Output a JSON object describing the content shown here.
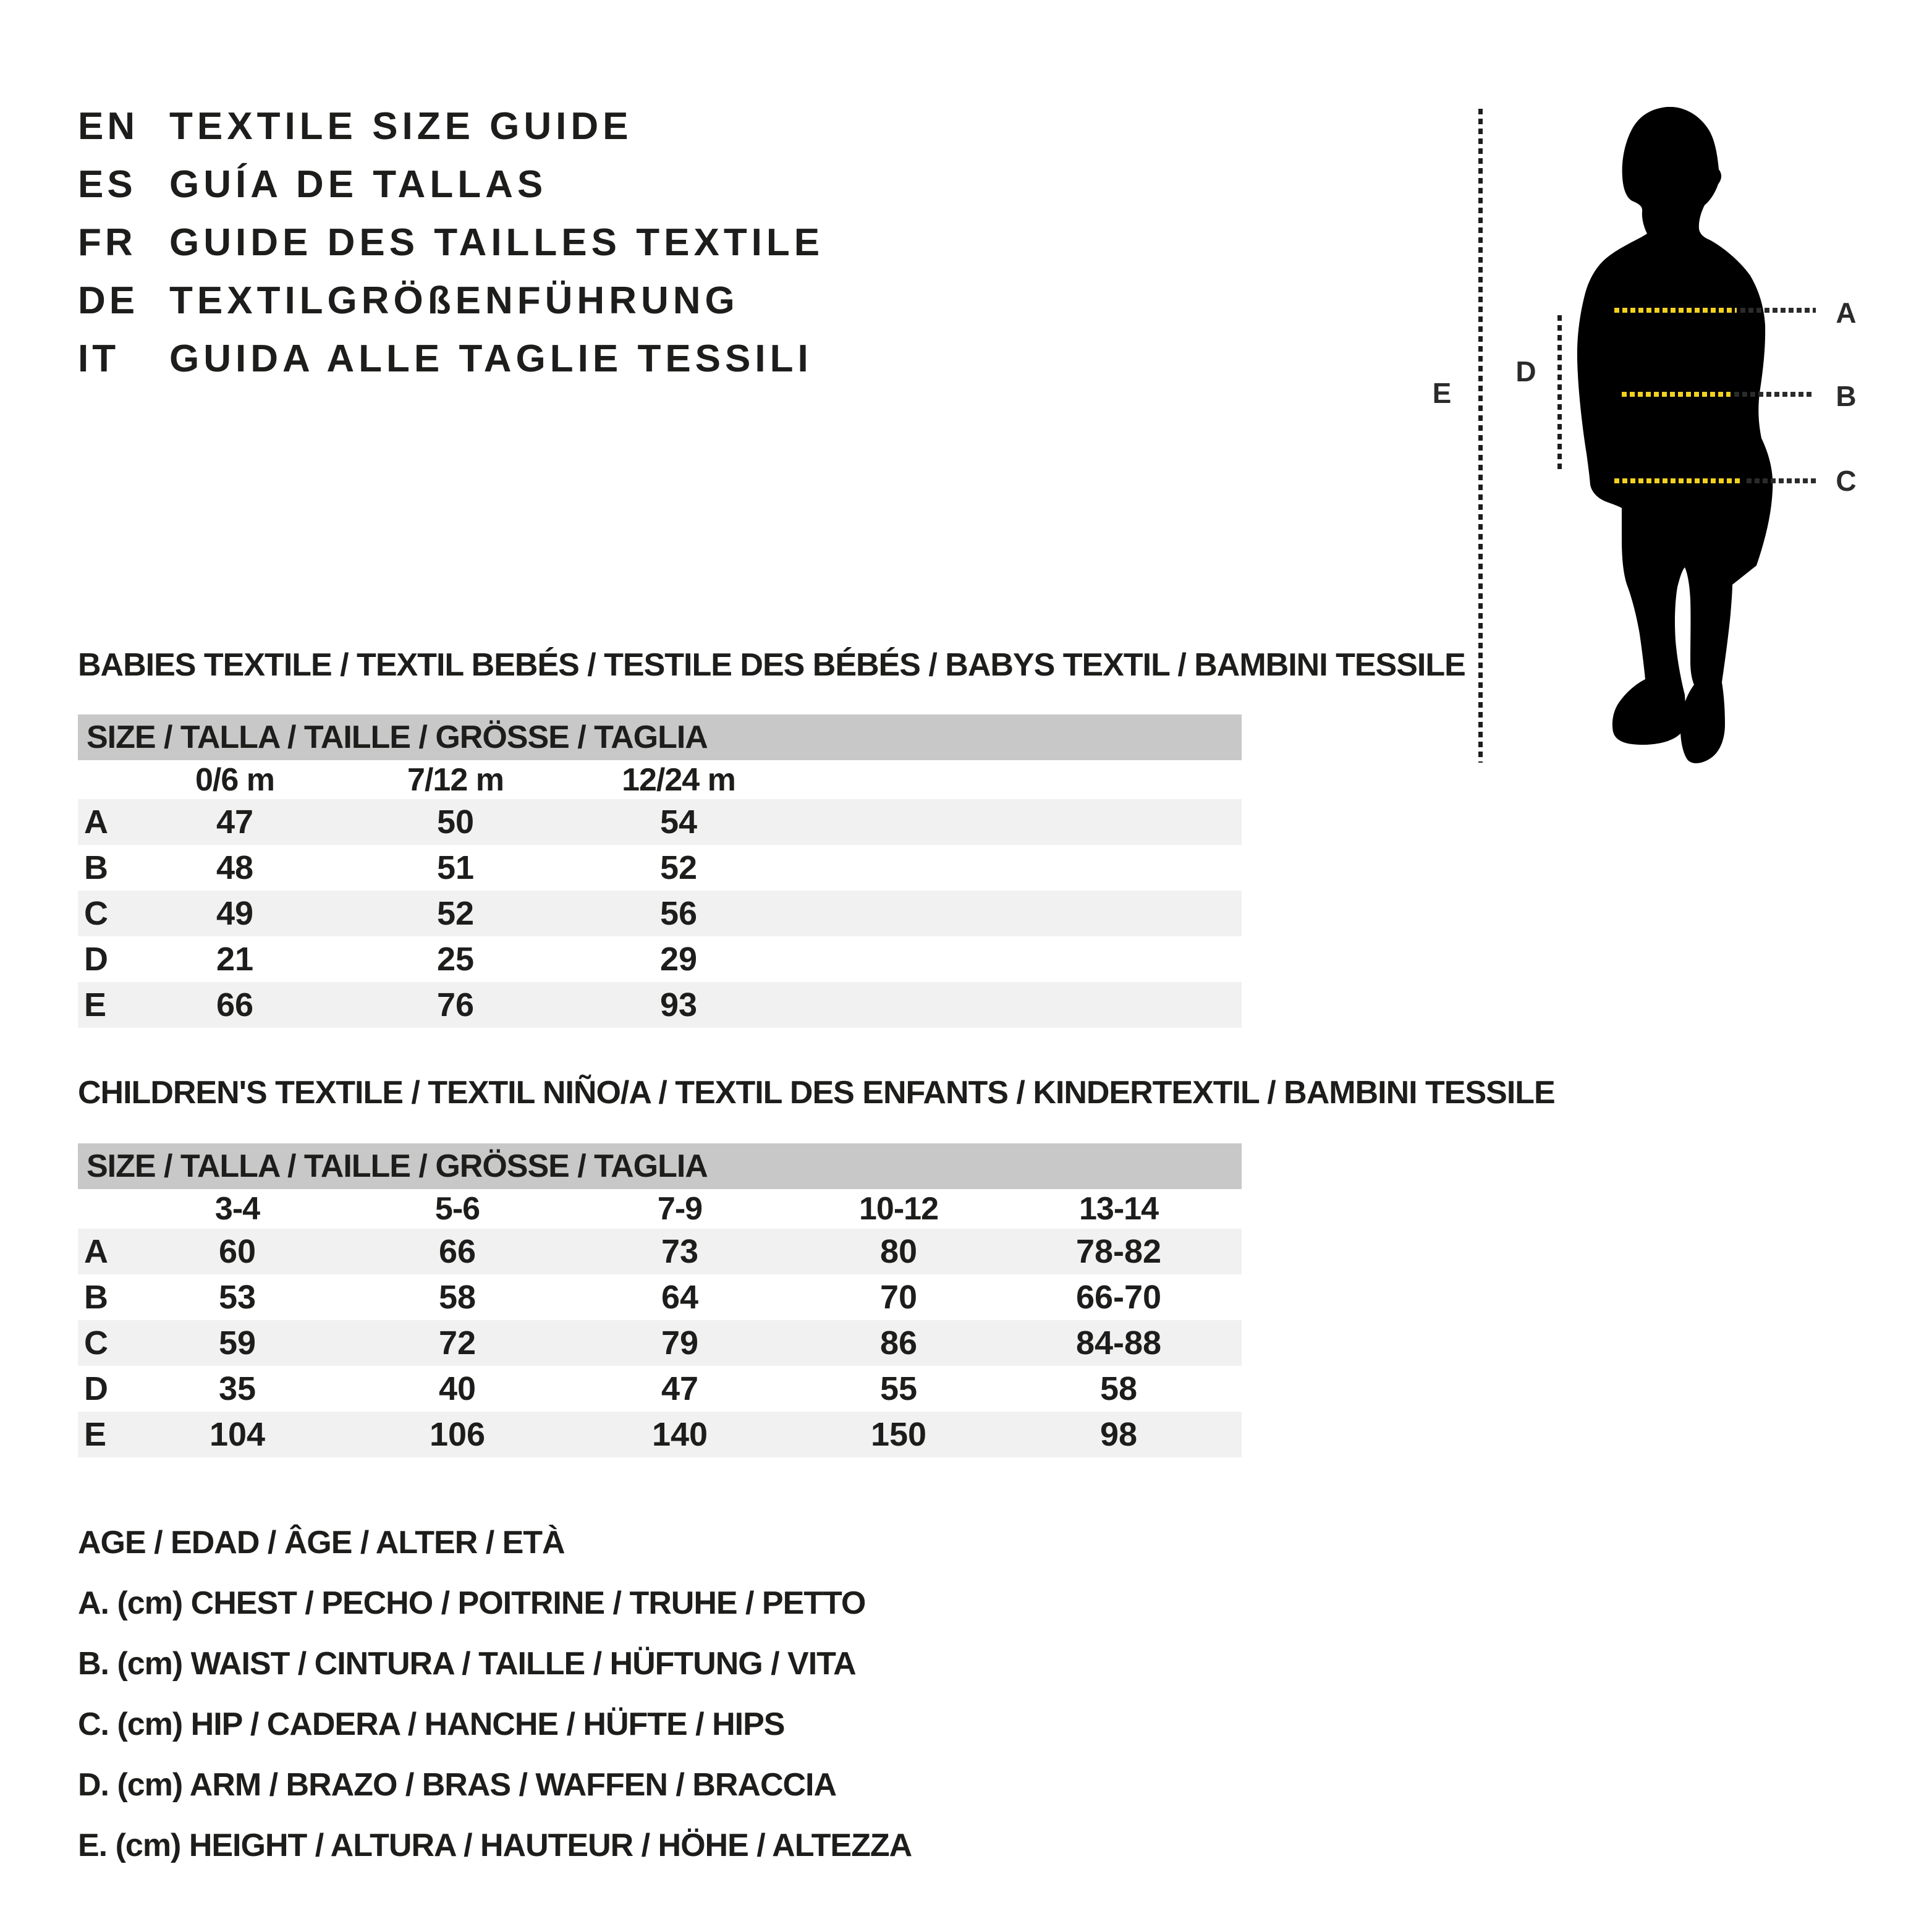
{
  "header": {
    "languages": [
      {
        "code": "EN",
        "title": "TEXTILE SIZE GUIDE"
      },
      {
        "code": "ES",
        "title": "GUÍA DE TALLAS"
      },
      {
        "code": "FR",
        "title": "GUIDE DES TAILLES TEXTILE"
      },
      {
        "code": "DE",
        "title": "TEXTILGRÖßENFÜHRUNG"
      },
      {
        "code": "IT",
        "title": "GUIDA ALLE TAGLIE TESSILI"
      }
    ]
  },
  "figure": {
    "labels": {
      "A": "A",
      "B": "B",
      "C": "C",
      "D": "D",
      "E": "E"
    },
    "silhouette_color": "#000000",
    "dash_yellow": "#f3d21f",
    "dash_dark": "#2b2b2b"
  },
  "tables": [
    {
      "title": "BABIES TEXTILE / TEXTIL BEBÉS / TESTILE DES BÉBÉS / BABYS TEXTIL / BAMBINI TESSILE",
      "size_header": "SIZE / TALLA / TAILLE / GRÖSSE / TAGLIA",
      "columns": [
        "0/6 m",
        "7/12 m",
        "12/24 m"
      ],
      "rows": [
        {
          "label": "A",
          "values": [
            "47",
            "50",
            "54"
          ]
        },
        {
          "label": "B",
          "values": [
            "48",
            "51",
            "52"
          ]
        },
        {
          "label": "C",
          "values": [
            "49",
            "52",
            "56"
          ]
        },
        {
          "label": "D",
          "values": [
            "21",
            "25",
            "29"
          ]
        },
        {
          "label": "E",
          "values": [
            "66",
            "76",
            "93"
          ]
        }
      ]
    },
    {
      "title": "CHILDREN'S TEXTILE / TEXTIL NIÑO/A / TEXTIL DES ENFANTS / KINDERTEXTIL / BAMBINI TESSILE",
      "size_header": "SIZE / TALLA / TAILLE / GRÖSSE / TAGLIA",
      "columns": [
        "3-4",
        "5-6",
        "7-9",
        "10-12",
        "13-14"
      ],
      "rows": [
        {
          "label": "A",
          "values": [
            "60",
            "66",
            "73",
            "80",
            "78-82"
          ]
        },
        {
          "label": "B",
          "values": [
            "53",
            "58",
            "64",
            "70",
            "66-70"
          ]
        },
        {
          "label": "C",
          "values": [
            "59",
            "72",
            "79",
            "86",
            "84-88"
          ]
        },
        {
          "label": "D",
          "values": [
            "35",
            "40",
            "47",
            "55",
            "58"
          ]
        },
        {
          "label": "E",
          "values": [
            "104",
            "106",
            "140",
            "150",
            "98"
          ]
        }
      ]
    }
  ],
  "legend": {
    "lines": [
      "AGE / EDAD / ÂGE / ALTER / ETÀ",
      "A. (cm) CHEST / PECHO / POITRINE / TRUHE / PETTO",
      "B. (cm) WAIST / CINTURA / TAILLE / HÜFTUNG / VITA",
      "C. (cm) HIP / CADERA / HANCHE / HÜFTE / HIPS",
      "D. (cm) ARM / BRAZO / BRAS / WAFFEN / BRACCIA",
      "E. (cm) HEIGHT / ALTURA / HAUTEUR / HÖHE / ALTEZZA"
    ]
  },
  "colors": {
    "banner_bg": "#c8c8c8",
    "row_shade": "#f1f1f1",
    "text": "#1d1d1b"
  }
}
